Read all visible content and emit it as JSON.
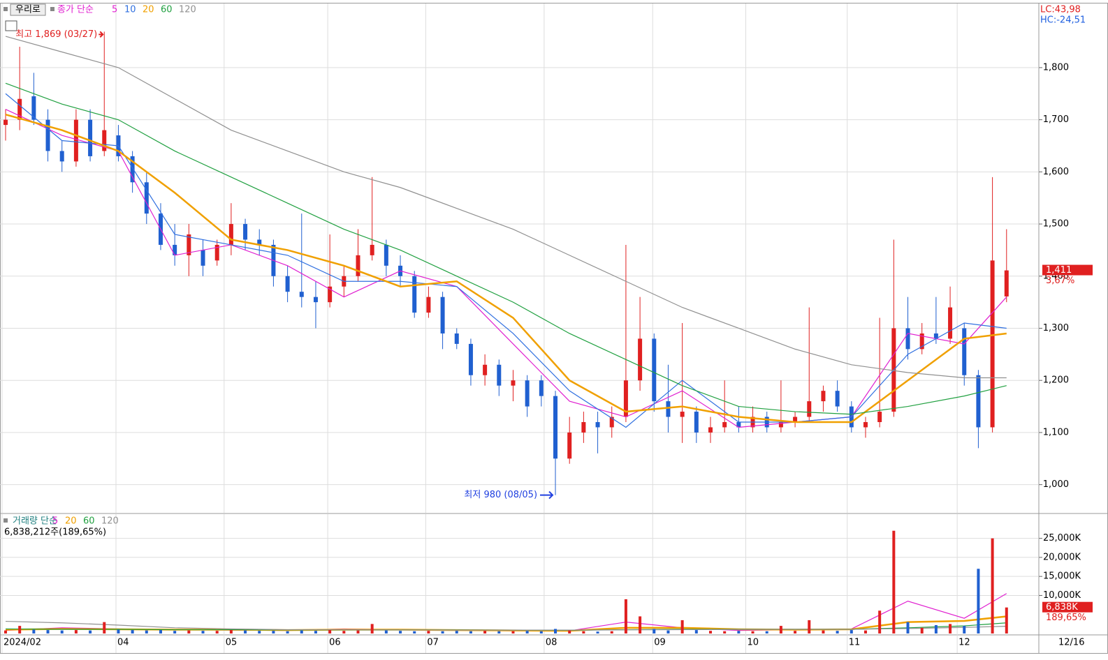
{
  "chart_data": {
    "type": "candlestick",
    "button": "우리로",
    "legend_label": "종가 단순",
    "price": {
      "ylim": [
        946,
        1923
      ],
      "yticks": [
        {
          "value": 1000,
          "label": "1,000"
        },
        {
          "value": 1100,
          "label": "1,100"
        },
        {
          "value": 1200,
          "label": "1,200"
        },
        {
          "value": 1300,
          "label": "1,300"
        },
        {
          "value": 1400,
          "label": "1,400"
        },
        {
          "value": 1500,
          "label": "1,500"
        },
        {
          "value": 1600,
          "label": "1,600"
        },
        {
          "value": 1700,
          "label": "1,700"
        },
        {
          "value": 1800,
          "label": "1,800"
        }
      ],
      "candles": [
        [
          1690,
          1720,
          1660,
          1700
        ],
        [
          1700,
          1840,
          1680,
          1740
        ],
        [
          1745,
          1790,
          1690,
          1700
        ],
        [
          1700,
          1720,
          1620,
          1640
        ],
        [
          1640,
          1660,
          1600,
          1620
        ],
        [
          1620,
          1720,
          1610,
          1700
        ],
        [
          1700,
          1720,
          1620,
          1630
        ],
        [
          1640,
          1869,
          1630,
          1680
        ],
        [
          1670,
          1690,
          1620,
          1630
        ],
        [
          1630,
          1640,
          1560,
          1580
        ],
        [
          1580,
          1600,
          1500,
          1520
        ],
        [
          1520,
          1540,
          1450,
          1460
        ],
        [
          1460,
          1500,
          1420,
          1440
        ],
        [
          1440,
          1500,
          1400,
          1480
        ],
        [
          1450,
          1470,
          1400,
          1420
        ],
        [
          1430,
          1470,
          1420,
          1460
        ],
        [
          1460,
          1540,
          1440,
          1500
        ],
        [
          1500,
          1510,
          1450,
          1470
        ],
        [
          1470,
          1490,
          1440,
          1460
        ],
        [
          1460,
          1470,
          1380,
          1400
        ],
        [
          1400,
          1420,
          1350,
          1370
        ],
        [
          1370,
          1520,
          1340,
          1360
        ],
        [
          1360,
          1390,
          1300,
          1350
        ],
        [
          1350,
          1480,
          1340,
          1380
        ],
        [
          1380,
          1420,
          1360,
          1400
        ],
        [
          1400,
          1490,
          1390,
          1440
        ],
        [
          1440,
          1590,
          1430,
          1460
        ],
        [
          1460,
          1470,
          1400,
          1420
        ],
        [
          1420,
          1440,
          1380,
          1400
        ],
        [
          1400,
          1410,
          1320,
          1330
        ],
        [
          1330,
          1380,
          1320,
          1360
        ],
        [
          1360,
          1370,
          1260,
          1290
        ],
        [
          1290,
          1300,
          1260,
          1270
        ],
        [
          1270,
          1280,
          1190,
          1210
        ],
        [
          1210,
          1250,
          1190,
          1230
        ],
        [
          1230,
          1240,
          1170,
          1190
        ],
        [
          1190,
          1220,
          1160,
          1200
        ],
        [
          1200,
          1210,
          1130,
          1150
        ],
        [
          1200,
          1210,
          1150,
          1170
        ],
        [
          1170,
          1180,
          980,
          1050
        ],
        [
          1050,
          1130,
          1040,
          1100
        ],
        [
          1100,
          1140,
          1080,
          1120
        ],
        [
          1120,
          1140,
          1060,
          1110
        ],
        [
          1110,
          1150,
          1090,
          1130
        ],
        [
          1130,
          1460,
          1120,
          1200
        ],
        [
          1200,
          1360,
          1180,
          1280
        ],
        [
          1280,
          1290,
          1140,
          1160
        ],
        [
          1160,
          1230,
          1100,
          1130
        ],
        [
          1130,
          1310,
          1080,
          1140
        ],
        [
          1140,
          1150,
          1080,
          1100
        ],
        [
          1100,
          1130,
          1080,
          1110
        ],
        [
          1110,
          1200,
          1100,
          1120
        ],
        [
          1120,
          1150,
          1100,
          1110
        ],
        [
          1110,
          1150,
          1100,
          1130
        ],
        [
          1130,
          1140,
          1100,
          1110
        ],
        [
          1110,
          1200,
          1100,
          1120
        ],
        [
          1120,
          1140,
          1110,
          1130
        ],
        [
          1130,
          1340,
          1120,
          1160
        ],
        [
          1160,
          1190,
          1140,
          1180
        ],
        [
          1180,
          1200,
          1140,
          1150
        ],
        [
          1150,
          1160,
          1100,
          1110
        ],
        [
          1110,
          1130,
          1090,
          1120
        ],
        [
          1120,
          1320,
          1110,
          1140
        ],
        [
          1140,
          1470,
          1130,
          1300
        ],
        [
          1300,
          1360,
          1240,
          1260
        ],
        [
          1260,
          1310,
          1250,
          1290
        ],
        [
          1290,
          1360,
          1270,
          1280
        ],
        [
          1280,
          1380,
          1270,
          1340
        ],
        [
          1300,
          1310,
          1190,
          1210
        ],
        [
          1210,
          1220,
          1070,
          1110
        ],
        [
          1110,
          1590,
          1100,
          1430
        ],
        [
          1361,
          1490,
          1350,
          1411
        ]
      ],
      "ma_x": [
        0,
        4,
        8,
        12,
        16,
        20,
        24,
        28,
        32,
        36,
        40,
        44,
        48,
        52,
        56,
        60,
        64,
        68,
        71
      ],
      "ma": [
        {
          "name": "5",
          "color": "#e020d0",
          "values": [
            1720,
            1670,
            1640,
            1440,
            1460,
            1420,
            1360,
            1410,
            1380,
            1270,
            1160,
            1130,
            1180,
            1110,
            1120,
            1130,
            1290,
            1270,
            1360
          ]
        },
        {
          "name": "10",
          "color": "#3070e0",
          "values": [
            1750,
            1660,
            1650,
            1480,
            1460,
            1440,
            1390,
            1390,
            1380,
            1290,
            1180,
            1110,
            1200,
            1120,
            1120,
            1130,
            1250,
            1310,
            1300
          ]
        },
        {
          "name": "20",
          "color": "#f0a000",
          "values": [
            1710,
            1680,
            1640,
            1560,
            1470,
            1450,
            1420,
            1380,
            1390,
            1320,
            1200,
            1140,
            1150,
            1130,
            1120,
            1120,
            1200,
            1280,
            1290
          ]
        },
        {
          "name": "60",
          "color": "#20a040",
          "values": [
            1770,
            1730,
            1700,
            1640,
            1590,
            1540,
            1490,
            1450,
            1400,
            1350,
            1290,
            1240,
            1190,
            1150,
            1140,
            1135,
            1150,
            1170,
            1190
          ]
        },
        {
          "name": "120",
          "color": "#909090",
          "values": [
            1860,
            1830,
            1800,
            1740,
            1680,
            1640,
            1600,
            1570,
            1530,
            1490,
            1440,
            1390,
            1340,
            1300,
            1260,
            1230,
            1215,
            1205,
            1205
          ]
        }
      ],
      "high_note": "최고 1,869 (03/27)",
      "low_note": "최저 980 (08/05)",
      "last_label": "1,411",
      "change_label": "3,67%",
      "lc": "LC:43,98",
      "hc": "HC:-24,51"
    },
    "volume": {
      "title": "거래량 단순",
      "summary": "6,838,212주(189,65%)",
      "ylim": [
        0,
        30800
      ],
      "yticks": [
        {
          "value": 10000,
          "label": "10,000K"
        },
        {
          "value": 15000,
          "label": "15,000K"
        },
        {
          "value": 20000,
          "label": "20,000K"
        },
        {
          "value": 25000,
          "label": "25,000K"
        }
      ],
      "values": [
        800,
        2000,
        1000,
        900,
        800,
        900,
        800,
        3000,
        1000,
        900,
        800,
        900,
        700,
        800,
        700,
        700,
        900,
        800,
        700,
        700,
        600,
        800,
        700,
        900,
        700,
        800,
        2500,
        800,
        700,
        600,
        700,
        600,
        700,
        600,
        700,
        600,
        600,
        700,
        600,
        1200,
        800,
        600,
        500,
        600,
        9000,
        4500,
        1200,
        800,
        3500,
        900,
        700,
        600,
        700,
        600,
        600,
        2000,
        700,
        3500,
        800,
        700,
        900,
        800,
        6000,
        27000,
        3000,
        1500,
        2200,
        2500,
        2000,
        17000,
        25000,
        6838
      ],
      "last_label": "6,838K",
      "change_label": "189,65%",
      "ma": [
        {
          "name": "5",
          "color": "#e020d0",
          "values": [
            800,
            1500,
            1200,
            1000,
            900,
            800,
            1200,
            1000,
            900,
            700,
            700,
            3000,
            1500,
            800,
            1000,
            1200,
            8500,
            4000,
            10500
          ]
        },
        {
          "name": "20",
          "color": "#f0a000",
          "values": [
            1000,
            1200,
            1100,
            1000,
            1000,
            900,
            1000,
            1000,
            900,
            800,
            700,
            1500,
            1500,
            1100,
            1000,
            1100,
            3000,
            3300,
            4500
          ]
        },
        {
          "name": "60",
          "color": "#20a040",
          "values": [
            1200,
            1100,
            1100,
            1000,
            1000,
            950,
            950,
            950,
            950,
            900,
            850,
            1000,
            1100,
            1100,
            1100,
            1100,
            1500,
            2000,
            2800
          ]
        },
        {
          "name": "120",
          "color": "#909090",
          "values": [
            3200,
            2800,
            2200,
            1500,
            1200,
            1000,
            1000,
            950,
            900,
            900,
            900,
            950,
            1000,
            1050,
            1100,
            1100,
            1300,
            1600,
            1900
          ]
        }
      ]
    },
    "xticks": [
      {
        "value": -0.25,
        "label": "2024/02"
      },
      {
        "value": 7.83,
        "label": "04"
      },
      {
        "value": 15.5,
        "label": "05"
      },
      {
        "value": 22.85,
        "label": "06"
      },
      {
        "value": 29.8,
        "label": "07"
      },
      {
        "value": 38.2,
        "label": "08"
      },
      {
        "value": 45.9,
        "label": "09"
      },
      {
        "value": 52.5,
        "label": "10"
      },
      {
        "value": 59.7,
        "label": "11"
      },
      {
        "value": 67.5,
        "label": "12"
      }
    ],
    "date_end": "12/16"
  }
}
